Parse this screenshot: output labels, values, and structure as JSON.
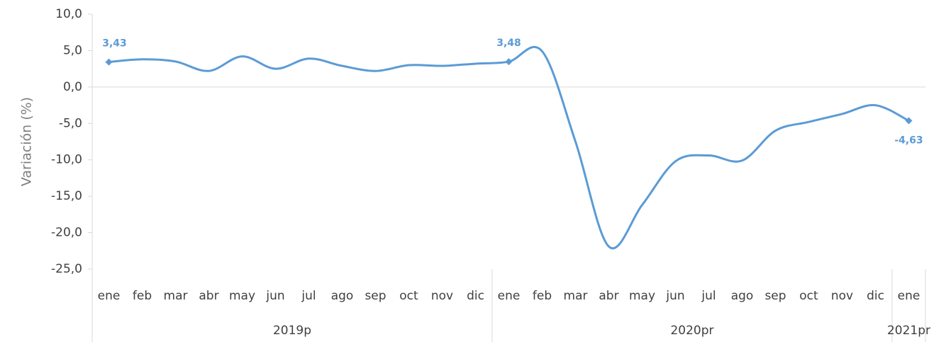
{
  "chart_data": {
    "type": "line",
    "y_label": "Variación (%)",
    "categories": [
      "ene",
      "feb",
      "mar",
      "abr",
      "may",
      "jun",
      "jul",
      "ago",
      "sep",
      "oct",
      "nov",
      "dic",
      "ene",
      "feb",
      "mar",
      "abr",
      "may",
      "jun",
      "jul",
      "ago",
      "sep",
      "oct",
      "nov",
      "dic",
      "ene"
    ],
    "groups": [
      {
        "label": "2019p",
        "count": 12
      },
      {
        "label": "2020pr",
        "count": 12
      },
      {
        "label": "2021pr",
        "count": 1
      }
    ],
    "series": [
      {
        "name": "Variación",
        "color": "#5b9bd5",
        "values": [
          3.43,
          3.8,
          3.5,
          2.2,
          4.2,
          2.5,
          3.9,
          2.9,
          2.2,
          3.0,
          2.9,
          3.2,
          3.48,
          4.9,
          -7.5,
          -21.9,
          -16.2,
          -10.2,
          -9.4,
          -10.1,
          -6.0,
          -4.8,
          -3.7,
          -2.5,
          -4.63
        ],
        "value_labels": [
          "3,43",
          null,
          null,
          null,
          null,
          null,
          null,
          null,
          null,
          null,
          null,
          null,
          "3,48",
          null,
          null,
          null,
          null,
          null,
          null,
          null,
          null,
          null,
          null,
          null,
          "-4,63"
        ]
      }
    ],
    "ylim": [
      -25,
      10
    ],
    "yticks": [
      {
        "value": 10,
        "label": "10,0"
      },
      {
        "value": 5,
        "label": "5,0"
      },
      {
        "value": 0,
        "label": "0,0"
      },
      {
        "value": -5,
        "label": "-5,0"
      },
      {
        "value": -10,
        "label": "-10,0"
      },
      {
        "value": -15,
        "label": "-15,0"
      },
      {
        "value": -20,
        "label": "-20,0"
      },
      {
        "value": -25,
        "label": "-25,0"
      }
    ],
    "grid": false
  }
}
